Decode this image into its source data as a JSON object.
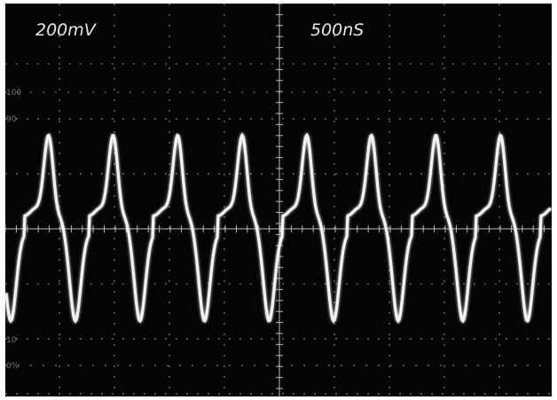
{
  "readout": {
    "volts_per_div": "200mV",
    "time_per_div": "500nS"
  },
  "graticule_labels": [
    "100",
    "90",
    "10",
    "0%"
  ]
}
